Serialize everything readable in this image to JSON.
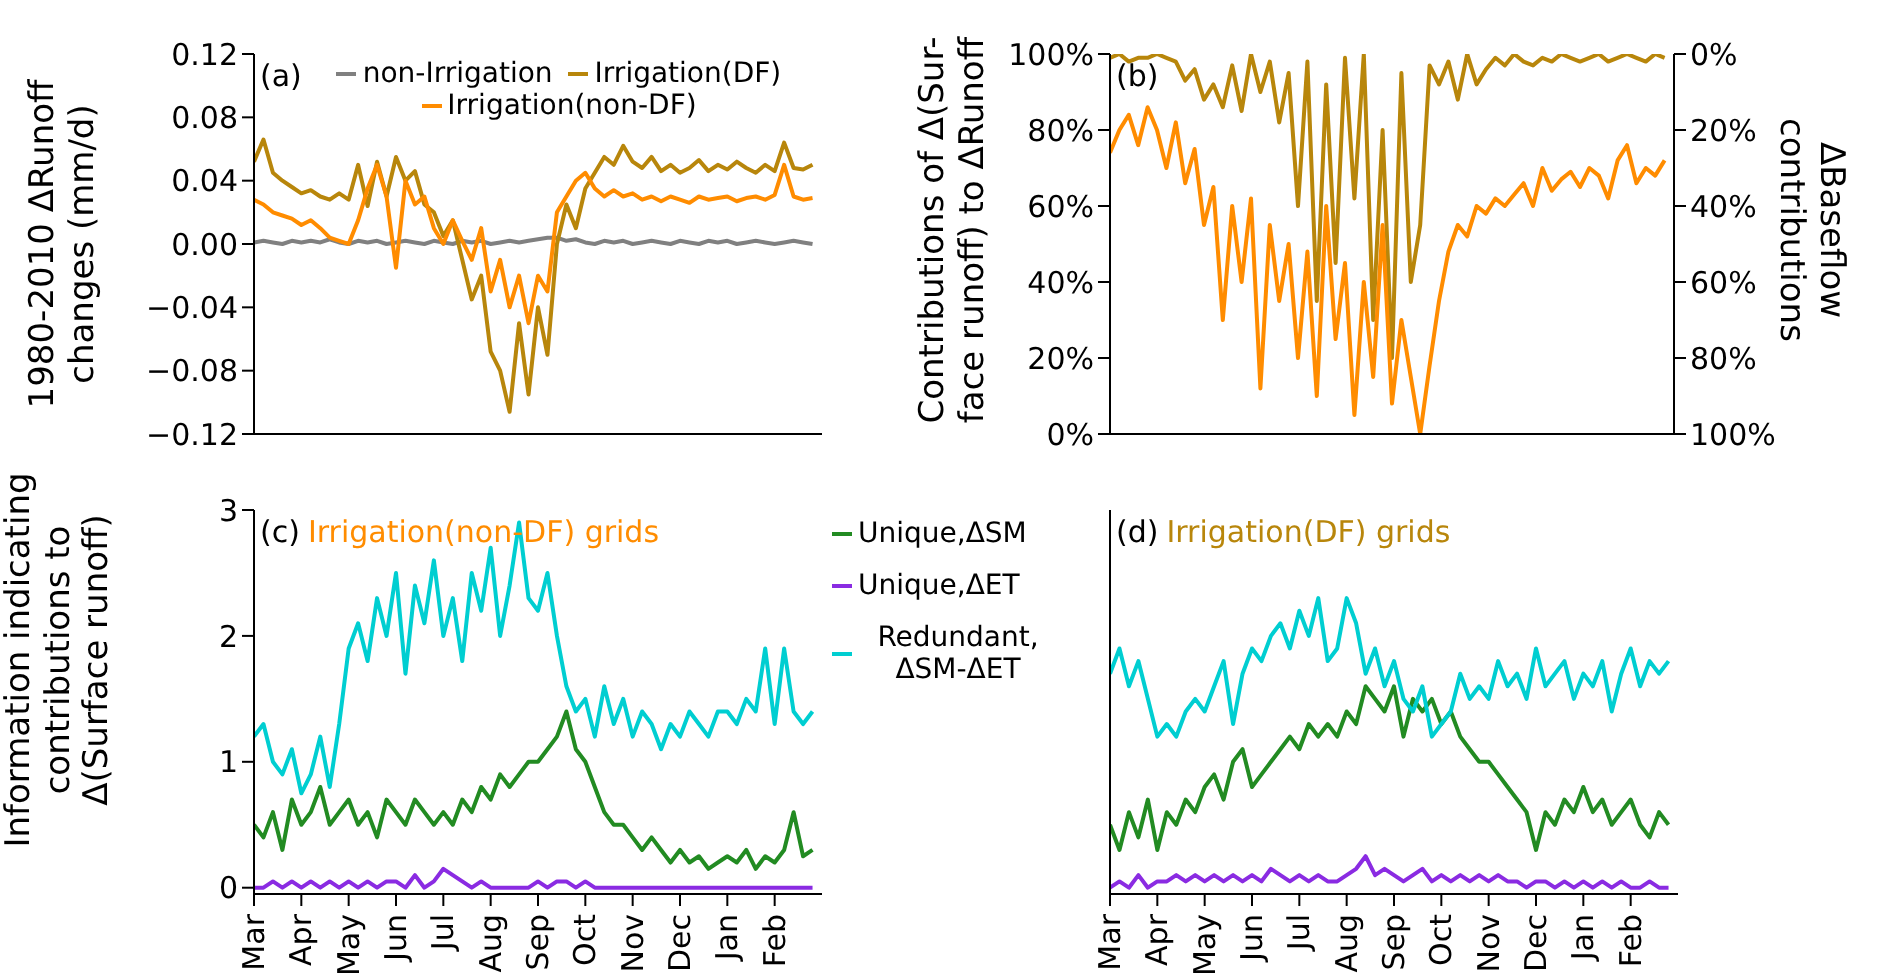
{
  "chart_data": [
    {
      "type": "line",
      "ylabel": "1980-2010 ΔRunoff\nchanges (mm/d)",
      "annotations": [
        "(a)"
      ],
      "legend": "top",
      "tick_labels": "y",
      "categories": [
        null,
        null,
        null,
        null,
        null,
        null,
        null,
        null,
        null,
        null,
        null,
        null,
        null,
        null,
        null,
        null,
        null,
        null,
        null,
        null,
        null,
        null,
        null,
        null,
        null,
        null,
        null,
        null,
        null,
        null,
        null,
        null,
        null,
        null,
        null,
        null,
        null,
        null,
        null,
        null,
        null,
        null,
        null,
        null,
        null,
        null,
        null,
        null,
        null,
        null,
        null,
        null,
        null,
        null,
        null,
        null,
        null,
        null,
        null,
        null
      ],
      "ylim": [
        -0.12,
        0.12
      ],
      "yticks": [
        {
          "value": -0.12,
          "label": "−0.12"
        },
        {
          "value": -0.08,
          "label": "−0.08"
        },
        {
          "value": -0.04,
          "label": "−0.04"
        },
        {
          "value": 0,
          "label": "0.00"
        },
        {
          "value": 0.04,
          "label": "0.04"
        },
        {
          "value": 0.08,
          "label": "0.08"
        },
        {
          "value": 0.12,
          "label": "0.12"
        }
      ],
      "series": [
        {
          "name": "non-Irrigation",
          "color": "#808080",
          "values": [
            0.001,
            0.002,
            0.001,
            0.0,
            0.002,
            0.001,
            0.002,
            0.001,
            0.003,
            0.001,
            0.0,
            0.002,
            0.001,
            0.002,
            0.0,
            0.001,
            0.002,
            0.001,
            0.0,
            0.002,
            0.001,
            0.0,
            0.002,
            0.001,
            0.002,
            0.0,
            0.001,
            0.002,
            0.001,
            0.002,
            0.003,
            0.004,
            0.004,
            0.002,
            0.003,
            0.001,
            0.0,
            0.002,
            0.001,
            0.002,
            0.0,
            0.001,
            0.002,
            0.001,
            0.0,
            0.002,
            0.001,
            0.0,
            0.002,
            0.001,
            0.002,
            0.0,
            0.001,
            0.002,
            0.001,
            0.0,
            0.001,
            0.002,
            0.001,
            0.0
          ]
        },
        {
          "name": "Irrigation(DF)",
          "color": "#b8860b",
          "values": [
            0.052,
            0.066,
            0.045,
            0.04,
            0.036,
            0.032,
            0.034,
            0.03,
            0.028,
            0.032,
            0.028,
            0.05,
            0.024,
            0.052,
            0.03,
            0.055,
            0.04,
            0.046,
            0.025,
            0.02,
            0.005,
            0.015,
            -0.01,
            -0.035,
            -0.02,
            -0.068,
            -0.08,
            -0.106,
            -0.05,
            -0.095,
            -0.04,
            -0.07,
            0.0,
            0.025,
            0.01,
            0.035,
            0.045,
            0.055,
            0.05,
            0.062,
            0.052,
            0.048,
            0.055,
            0.046,
            0.05,
            0.045,
            0.048,
            0.053,
            0.046,
            0.05,
            0.047,
            0.052,
            0.048,
            0.045,
            0.05,
            0.046,
            0.064,
            0.048,
            0.047,
            0.05
          ]
        },
        {
          "name": "Irrigation(non-DF)",
          "color": "#ff8c00",
          "values": [
            0.028,
            0.025,
            0.02,
            0.018,
            0.016,
            0.012,
            0.015,
            0.01,
            0.004,
            0.002,
            0.0,
            0.015,
            0.035,
            0.05,
            0.03,
            -0.015,
            0.04,
            0.025,
            0.03,
            0.01,
            0.0,
            0.015,
            0.002,
            -0.01,
            0.01,
            -0.03,
            -0.01,
            -0.04,
            -0.02,
            -0.05,
            -0.02,
            -0.03,
            0.02,
            0.03,
            0.04,
            0.045,
            0.035,
            0.03,
            0.034,
            0.03,
            0.032,
            0.028,
            0.03,
            0.027,
            0.03,
            0.028,
            0.026,
            0.03,
            0.028,
            0.029,
            0.03,
            0.027,
            0.029,
            0.03,
            0.028,
            0.031,
            0.05,
            0.03,
            0.028,
            0.029
          ]
        }
      ]
    },
    {
      "type": "line",
      "ylabel": "Contributions of Δ(Sur-\nface runoff) to ΔRunoff",
      "y2label": "ΔBaseflow\ncontributions",
      "annotations": [
        "(b)"
      ],
      "tick_labels": "y",
      "categories": [
        null,
        null,
        null,
        null,
        null,
        null,
        null,
        null,
        null,
        null,
        null,
        null,
        null,
        null,
        null,
        null,
        null,
        null,
        null,
        null,
        null,
        null,
        null,
        null,
        null,
        null,
        null,
        null,
        null,
        null,
        null,
        null,
        null,
        null,
        null,
        null,
        null,
        null,
        null,
        null,
        null,
        null,
        null,
        null,
        null,
        null,
        null,
        null,
        null,
        null,
        null,
        null,
        null,
        null,
        null,
        null,
        null,
        null,
        null,
        null
      ],
      "ylim": [
        0,
        100
      ],
      "yticks": [
        {
          "value": 0,
          "label": "0%"
        },
        {
          "value": 20,
          "label": "20%"
        },
        {
          "value": 40,
          "label": "40%"
        },
        {
          "value": 60,
          "label": "60%"
        },
        {
          "value": 80,
          "label": "80%"
        },
        {
          "value": 100,
          "label": "100%"
        }
      ],
      "y2lim": [
        100,
        0
      ],
      "y2ticks": [
        {
          "value": 0,
          "label": "0%"
        },
        {
          "value": 20,
          "label": "20%"
        },
        {
          "value": 40,
          "label": "40%"
        },
        {
          "value": 60,
          "label": "60%"
        },
        {
          "value": 80,
          "label": "80%"
        },
        {
          "value": 100,
          "label": "100%"
        }
      ],
      "series": [
        {
          "color": "#b8860b",
          "values": [
            99,
            100,
            98,
            99,
            99,
            100,
            99,
            98,
            93,
            96,
            88,
            92,
            86,
            97,
            85,
            100,
            90,
            98,
            82,
            95,
            60,
            98,
            35,
            92,
            45,
            99,
            62,
            100,
            30,
            80,
            20,
            95,
            40,
            55,
            97,
            92,
            98,
            88,
            100,
            92,
            96,
            99,
            97,
            100,
            98,
            97,
            99,
            98,
            100,
            99,
            98,
            99,
            100,
            98,
            99,
            100,
            99,
            98,
            100,
            99
          ]
        },
        {
          "color": "#ff8c00",
          "values": [
            74,
            80,
            84,
            76,
            86,
            80,
            70,
            82,
            66,
            75,
            55,
            65,
            30,
            60,
            40,
            62,
            12,
            55,
            35,
            50,
            20,
            48,
            10,
            60,
            25,
            45,
            5,
            40,
            15,
            55,
            8,
            30,
            15,
            0,
            18,
            35,
            48,
            55,
            52,
            60,
            58,
            62,
            60,
            63,
            66,
            60,
            70,
            64,
            67,
            69,
            65,
            70,
            68,
            62,
            72,
            76,
            66,
            70,
            68,
            72
          ]
        }
      ]
    },
    {
      "type": "line",
      "ylabel": "Information indicating\ncontributions to\nΔ(Surface runoff)",
      "annotations": [
        "(c)",
        "Irrigation(non-DF) grids"
      ],
      "legend": "right",
      "categories": [
        "Mar",
        null,
        null,
        null,
        null,
        "Apr",
        null,
        null,
        null,
        null,
        "May",
        null,
        null,
        null,
        null,
        "Jun",
        null,
        null,
        null,
        null,
        "Jul",
        null,
        null,
        null,
        null,
        "Aug",
        null,
        null,
        null,
        null,
        "Sep",
        null,
        null,
        null,
        null,
        "Oct",
        null,
        null,
        null,
        null,
        "Nov",
        null,
        null,
        null,
        null,
        "Dec",
        null,
        null,
        null,
        null,
        "Jan",
        null,
        null,
        null,
        null,
        "Feb",
        null,
        null,
        null,
        null
      ],
      "ylim": [
        -0.05,
        3
      ],
      "yticks": [
        0,
        1,
        2,
        3
      ],
      "series": [
        {
          "name": "Unique,ΔSM",
          "color": "#228b22",
          "values": [
            0.5,
            0.4,
            0.6,
            0.3,
            0.7,
            0.5,
            0.6,
            0.8,
            0.5,
            0.6,
            0.7,
            0.5,
            0.6,
            0.4,
            0.7,
            0.6,
            0.5,
            0.7,
            0.6,
            0.5,
            0.6,
            0.5,
            0.7,
            0.6,
            0.8,
            0.7,
            0.9,
            0.8,
            0.9,
            1.0,
            1.0,
            1.1,
            1.2,
            1.4,
            1.1,
            1.0,
            0.8,
            0.6,
            0.5,
            0.5,
            0.4,
            0.3,
            0.4,
            0.3,
            0.2,
            0.3,
            0.2,
            0.25,
            0.15,
            0.2,
            0.25,
            0.2,
            0.3,
            0.15,
            0.25,
            0.2,
            0.3,
            0.6,
            0.25,
            0.3
          ]
        },
        {
          "name": "Unique,ΔET",
          "color": "#8a2be2",
          "values": [
            0,
            0,
            0.05,
            0,
            0.05,
            0,
            0.05,
            0,
            0.05,
            0,
            0.05,
            0,
            0.05,
            0,
            0.05,
            0.05,
            0,
            0.1,
            0,
            0.05,
            0.15,
            0.1,
            0.05,
            0,
            0.05,
            0,
            0,
            0,
            0,
            0,
            0.05,
            0,
            0.05,
            0.05,
            0,
            0.05,
            0,
            0,
            0,
            0,
            0,
            0,
            0,
            0,
            0,
            0,
            0,
            0,
            0,
            0,
            0,
            0,
            0,
            0,
            0,
            0,
            0,
            0,
            0,
            0
          ]
        },
        {
          "name": "Redundant, ΔSM-ΔET",
          "color": "#00ced1",
          "values": [
            1.2,
            1.3,
            1.0,
            0.9,
            1.1,
            0.75,
            0.9,
            1.2,
            0.8,
            1.3,
            1.9,
            2.1,
            1.8,
            2.3,
            2.0,
            2.5,
            1.7,
            2.4,
            2.1,
            2.6,
            2.0,
            2.3,
            1.8,
            2.5,
            2.2,
            2.7,
            2.0,
            2.4,
            2.9,
            2.3,
            2.2,
            2.5,
            2.0,
            1.6,
            1.4,
            1.5,
            1.2,
            1.6,
            1.3,
            1.5,
            1.2,
            1.4,
            1.3,
            1.1,
            1.3,
            1.2,
            1.4,
            1.3,
            1.2,
            1.4,
            1.4,
            1.3,
            1.5,
            1.4,
            1.9,
            1.3,
            1.9,
            1.4,
            1.3,
            1.4
          ]
        }
      ]
    },
    {
      "type": "line",
      "annotations": [
        "(d)",
        "Irrigation(DF) grids"
      ],
      "tick_labels": "x",
      "categories": [
        "Mar",
        null,
        null,
        null,
        null,
        "Apr",
        null,
        null,
        null,
        null,
        "May",
        null,
        null,
        null,
        null,
        "Jun",
        null,
        null,
        null,
        null,
        "Jul",
        null,
        null,
        null,
        null,
        "Aug",
        null,
        null,
        null,
        null,
        "Sep",
        null,
        null,
        null,
        null,
        "Oct",
        null,
        null,
        null,
        null,
        "Nov",
        null,
        null,
        null,
        null,
        "Dec",
        null,
        null,
        null,
        null,
        "Jan",
        null,
        null,
        null,
        null,
        "Feb",
        null,
        null,
        null,
        null
      ],
      "ylim": [
        -0.05,
        3
      ],
      "yticks": [
        0,
        1,
        2,
        3
      ],
      "series": [
        {
          "color": "#228b22",
          "values": [
            0.5,
            0.3,
            0.6,
            0.4,
            0.7,
            0.3,
            0.6,
            0.5,
            0.7,
            0.6,
            0.8,
            0.9,
            0.7,
            1.0,
            1.1,
            0.8,
            0.9,
            1.0,
            1.1,
            1.2,
            1.1,
            1.3,
            1.2,
            1.3,
            1.2,
            1.4,
            1.3,
            1.6,
            1.5,
            1.4,
            1.6,
            1.2,
            1.5,
            1.4,
            1.5,
            1.3,
            1.4,
            1.2,
            1.1,
            1.0,
            1.0,
            0.9,
            0.8,
            0.7,
            0.6,
            0.3,
            0.6,
            0.5,
            0.7,
            0.6,
            0.8,
            0.6,
            0.7,
            0.5,
            0.6,
            0.7,
            0.5,
            0.4,
            0.6,
            0.5
          ]
        },
        {
          "color": "#8a2be2",
          "values": [
            0,
            0.05,
            0,
            0.1,
            0,
            0.05,
            0.05,
            0.1,
            0.05,
            0.1,
            0.05,
            0.1,
            0.05,
            0.1,
            0.05,
            0.1,
            0.05,
            0.15,
            0.1,
            0.05,
            0.1,
            0.05,
            0.1,
            0.05,
            0.05,
            0.1,
            0.15,
            0.25,
            0.1,
            0.15,
            0.1,
            0.05,
            0.1,
            0.15,
            0.05,
            0.1,
            0.05,
            0.1,
            0.05,
            0.1,
            0.05,
            0.1,
            0.05,
            0.05,
            0,
            0.05,
            0.05,
            0,
            0.05,
            0,
            0.05,
            0,
            0.05,
            0,
            0.05,
            0,
            0,
            0.05,
            0,
            0
          ]
        },
        {
          "color": "#00ced1",
          "values": [
            1.7,
            1.9,
            1.6,
            1.8,
            1.5,
            1.2,
            1.3,
            1.2,
            1.4,
            1.5,
            1.4,
            1.6,
            1.8,
            1.3,
            1.7,
            1.9,
            1.8,
            2.0,
            2.1,
            1.9,
            2.2,
            2.0,
            2.3,
            1.8,
            1.9,
            2.3,
            2.1,
            1.7,
            1.9,
            1.6,
            1.8,
            1.5,
            1.4,
            1.6,
            1.2,
            1.3,
            1.4,
            1.7,
            1.5,
            1.6,
            1.5,
            1.8,
            1.6,
            1.7,
            1.5,
            1.9,
            1.6,
            1.7,
            1.8,
            1.5,
            1.7,
            1.6,
            1.8,
            1.4,
            1.7,
            1.9,
            1.6,
            1.8,
            1.7,
            1.8
          ]
        }
      ]
    }
  ]
}
